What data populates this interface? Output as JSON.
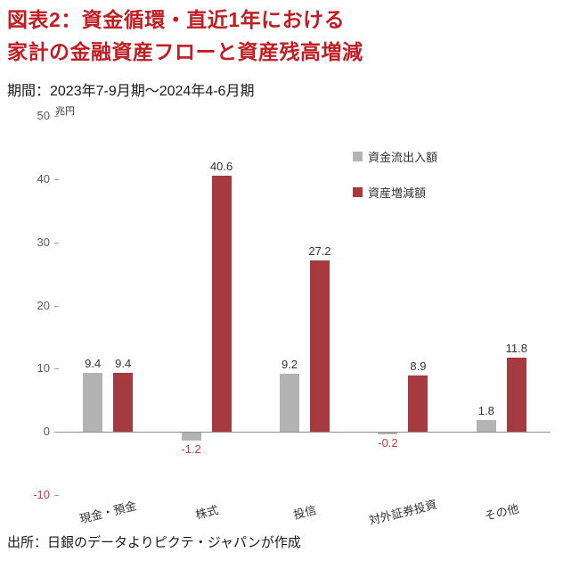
{
  "title": {
    "line1": "図表2：資金循環・直近1年における",
    "line2": "家計の金融資産フローと資産残高増減"
  },
  "subtitle": "期間：2023年7-9月期～2024年4-6月期",
  "unit_label": "兆円",
  "source": "出所：日銀のデータよりピクテ・ジャパンが作成",
  "colors": {
    "title_red": "#bf1e24",
    "bar_gray": "#b3b3b3",
    "bar_red": "#a63a41",
    "negative_red": "#cb3b3e"
  },
  "chart_data": {
    "type": "bar",
    "categories": [
      "現金・預金",
      "株式",
      "投信",
      "対外証券投資",
      "その他"
    ],
    "series": [
      {
        "name": "資金流出入額",
        "color": "#b3b3b3",
        "values": [
          9.4,
          -1.2,
          9.2,
          -0.2,
          1.8
        ]
      },
      {
        "name": "資産増減額",
        "color": "#a63a41",
        "values": [
          9.4,
          40.6,
          27.2,
          8.9,
          11.8
        ]
      }
    ],
    "title": "図表2：資金循環・直近1年における家計の金融資産フローと資産残高増減",
    "xlabel": "",
    "ylabel": "兆円",
    "ylim": [
      -10,
      50
    ],
    "yticks": [
      50,
      40,
      30,
      20,
      10,
      0,
      -10
    ],
    "grid": false,
    "legend_position": "top-right"
  }
}
